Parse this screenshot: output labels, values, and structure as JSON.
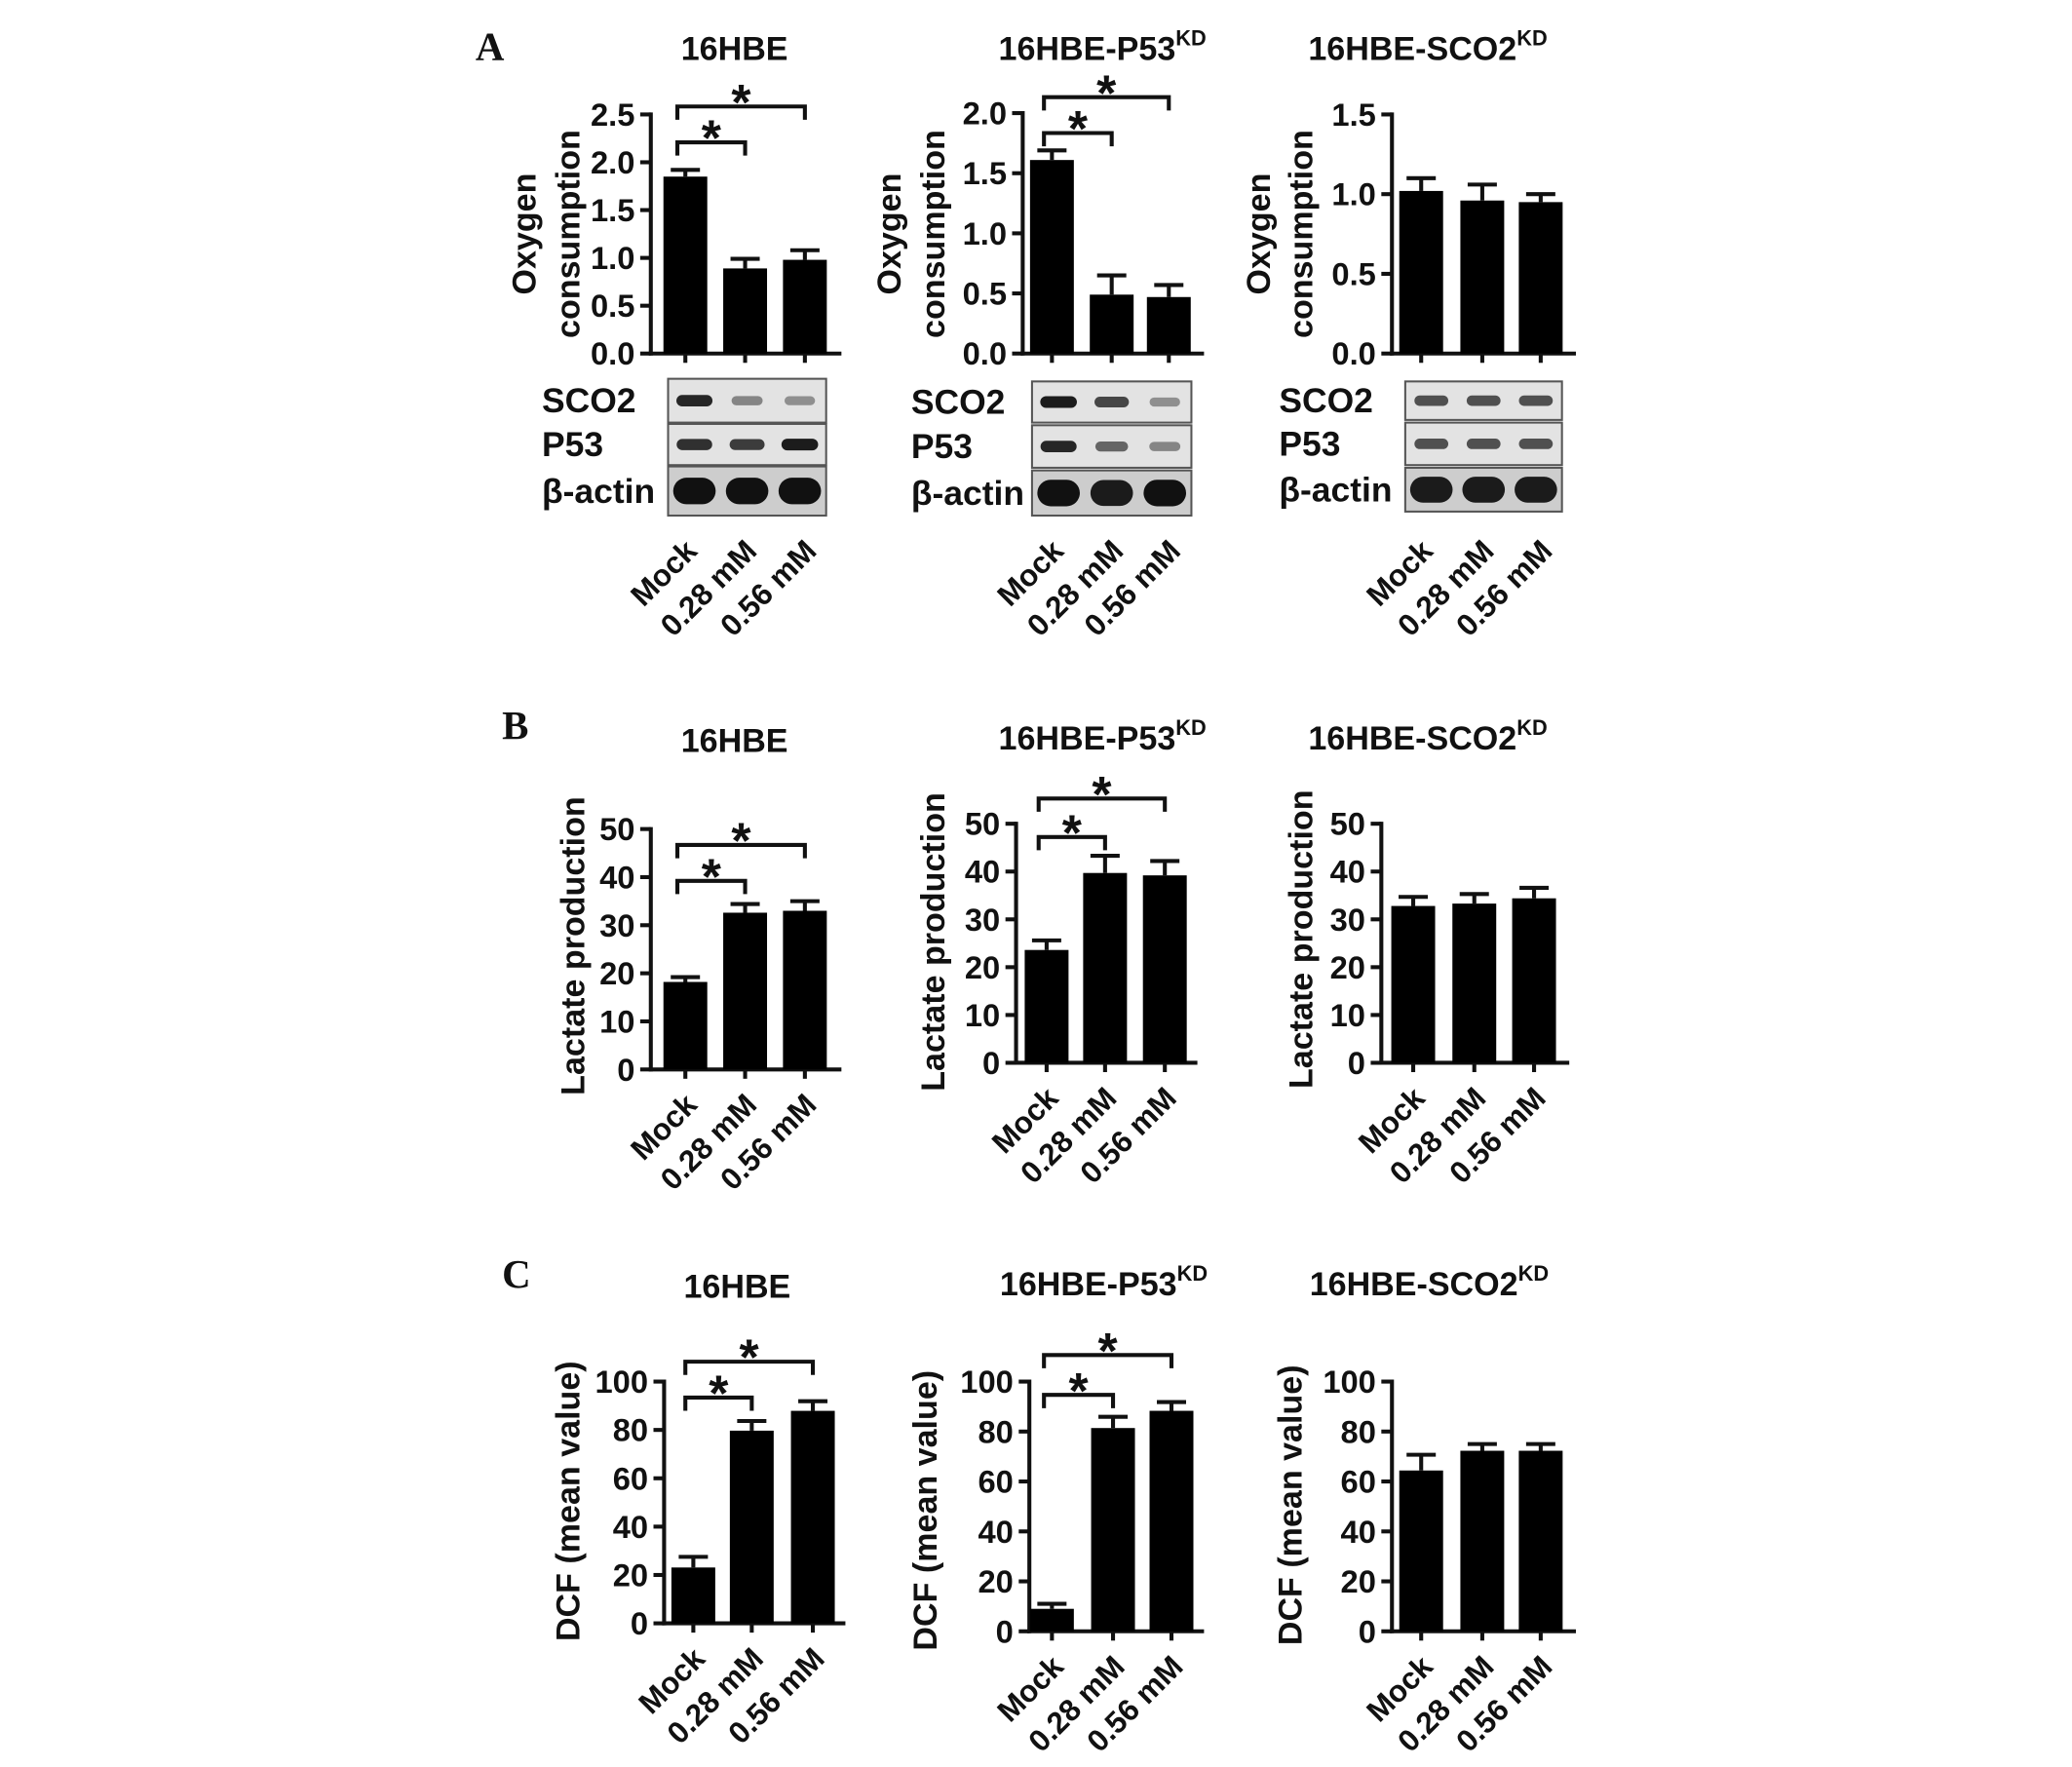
{
  "panel_labels": [
    "A",
    "B",
    "C"
  ],
  "colors": {
    "bars": "#000000",
    "blot_bands": "#111111"
  },
  "chart_data": [
    {
      "type": "bar",
      "title": "16HBE",
      "ylabel": [
        "Oxygen",
        "consumption"
      ],
      "categories": [
        "Mock",
        "0.28 mM",
        "0.56 mM"
      ],
      "values": [
        1.85,
        0.89,
        0.98
      ],
      "errors": [
        0.07,
        0.1,
        0.1
      ],
      "ylim": [
        0,
        2.5
      ],
      "yticks": [
        "0.0",
        "0.5",
        "1.0",
        "1.5",
        "2.0",
        "2.5"
      ],
      "significance": [
        {
          "between": [
            0,
            1
          ],
          "label": "*"
        },
        {
          "between": [
            0,
            2
          ],
          "label": "*"
        }
      ],
      "blot": [
        {
          "label": "SCO2",
          "intensity": [
            0.9,
            0.45,
            0.4
          ]
        },
        {
          "label": "P53",
          "intensity": [
            0.85,
            0.8,
            0.95
          ]
        },
        {
          "label": "β-actin",
          "intensity": [
            1,
            1,
            1
          ]
        }
      ]
    },
    {
      "type": "bar",
      "title": "16HBE-P53",
      "title_superscript": "KD",
      "ylabel": [
        "Oxygen",
        "consumption"
      ],
      "categories": [
        "Mock",
        "0.28 mM",
        "0.56 mM"
      ],
      "values": [
        1.61,
        0.49,
        0.47
      ],
      "errors": [
        0.08,
        0.16,
        0.1
      ],
      "ylim": [
        0,
        2.0
      ],
      "yticks": [
        "0.0",
        "0.5",
        "1.0",
        "1.5",
        "2.0"
      ],
      "significance": [
        {
          "between": [
            0,
            1
          ],
          "label": "*"
        },
        {
          "between": [
            0,
            2
          ],
          "label": "*"
        }
      ],
      "blot": [
        {
          "label": "SCO2",
          "intensity": [
            0.95,
            0.75,
            0.4
          ]
        },
        {
          "label": "P53",
          "intensity": [
            0.9,
            0.6,
            0.45
          ]
        },
        {
          "label": "β-actin",
          "intensity": [
            1,
            0.95,
            1
          ]
        }
      ]
    },
    {
      "type": "bar",
      "title": "16HBE-SCO2",
      "title_superscript": "KD",
      "ylabel": [
        "Oxygen",
        "consumption"
      ],
      "categories": [
        "Mock",
        "0.28 mM",
        "0.56 mM"
      ],
      "values": [
        1.02,
        0.96,
        0.95
      ],
      "errors": [
        0.08,
        0.1,
        0.05
      ],
      "ylim": [
        0,
        1.5
      ],
      "yticks": [
        "0.0",
        "0.5",
        "1.0",
        "1.5"
      ],
      "significance": [],
      "blot": [
        {
          "label": "SCO2",
          "intensity": [
            0.7,
            0.7,
            0.7
          ]
        },
        {
          "label": "P53",
          "intensity": [
            0.7,
            0.7,
            0.7
          ]
        },
        {
          "label": "β-actin",
          "intensity": [
            0.95,
            0.95,
            0.95
          ]
        }
      ]
    },
    {
      "type": "bar",
      "title": "16HBE",
      "ylabel": [
        "Lactate production"
      ],
      "categories": [
        "Mock",
        "0.28 mM",
        "0.56 mM"
      ],
      "values": [
        18.2,
        32.6,
        33.0
      ],
      "errors": [
        1,
        1.8,
        2
      ],
      "ylim": [
        0,
        50
      ],
      "yticks": [
        "0",
        "10",
        "20",
        "30",
        "40",
        "50"
      ],
      "significance": [
        {
          "between": [
            0,
            1
          ],
          "label": "*"
        },
        {
          "between": [
            0,
            2
          ],
          "label": "*"
        }
      ]
    },
    {
      "type": "bar",
      "title": "16HBE-P53",
      "title_superscript": "KD",
      "ylabel": [
        "Lactate production"
      ],
      "categories": [
        "Mock",
        "0.28 mM",
        "0.56 mM"
      ],
      "values": [
        23.6,
        39.7,
        39.2
      ],
      "errors": [
        2,
        3.6,
        3
      ],
      "ylim": [
        0,
        50
      ],
      "yticks": [
        "0",
        "10",
        "20",
        "30",
        "40",
        "50"
      ],
      "significance": [
        {
          "between": [
            0,
            1
          ],
          "label": "*"
        },
        {
          "between": [
            0,
            2
          ],
          "label": "*"
        }
      ]
    },
    {
      "type": "bar",
      "title": "16HBE-SCO2",
      "title_superscript": "KD",
      "ylabel": [
        "Lactate production"
      ],
      "categories": [
        "Mock",
        "0.28 mM",
        "0.56 mM"
      ],
      "values": [
        32.8,
        33.3,
        34.4
      ],
      "errors": [
        1.9,
        2,
        2.2
      ],
      "ylim": [
        0,
        50
      ],
      "yticks": [
        "0",
        "10",
        "20",
        "30",
        "40",
        "50"
      ],
      "significance": []
    },
    {
      "type": "bar",
      "title": "16HBE",
      "ylabel": [
        "DCF (mean value)"
      ],
      "categories": [
        "Mock",
        "0.28 mM",
        "0.56 mM"
      ],
      "values": [
        23.1,
        79.7,
        87.9
      ],
      "errors": [
        4.4,
        4,
        4
      ],
      "ylim": [
        0,
        100
      ],
      "yticks": [
        "0",
        "20",
        "40",
        "60",
        "80",
        "100"
      ],
      "significance": [
        {
          "between": [
            0,
            1
          ],
          "label": "*"
        },
        {
          "between": [
            0,
            2
          ],
          "label": "*"
        }
      ]
    },
    {
      "type": "bar",
      "title": "16HBE-P53",
      "title_superscript": "KD",
      "ylabel": [
        "DCF (mean value)"
      ],
      "categories": [
        "Mock",
        "0.28 mM",
        "0.56 mM"
      ],
      "values": [
        9,
        81.4,
        88.3
      ],
      "errors": [
        2,
        4.5,
        3.5
      ],
      "ylim": [
        0,
        100
      ],
      "yticks": [
        "0",
        "20",
        "40",
        "60",
        "80",
        "100"
      ],
      "significance": [
        {
          "between": [
            0,
            1
          ],
          "label": "*"
        },
        {
          "between": [
            0,
            2
          ],
          "label": "*"
        }
      ]
    },
    {
      "type": "bar",
      "title": "16HBE-SCO2",
      "title_superscript": "KD",
      "ylabel": [
        "DCF (mean value)"
      ],
      "categories": [
        "Mock",
        "0.28 mM",
        "0.56 mM"
      ],
      "values": [
        64.4,
        72.3,
        72.3
      ],
      "errors": [
        6.3,
        2.7,
        2.7
      ],
      "ylim": [
        0,
        100
      ],
      "yticks": [
        "0",
        "20",
        "40",
        "60",
        "80",
        "100"
      ],
      "significance": []
    }
  ]
}
